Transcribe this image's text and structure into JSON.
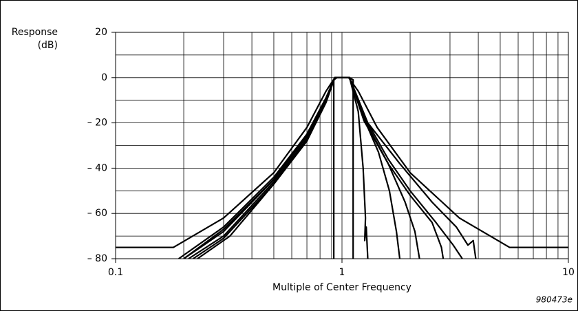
{
  "chart_data": {
    "type": "line",
    "ylabel_lines": [
      "Response",
      "(dB)"
    ],
    "xlabel": "Multiple of Center Frequency",
    "note": "980473e",
    "xscale": "log",
    "grid": true,
    "color": "#000000",
    "xlim": [
      0.1,
      10
    ],
    "xticks": [
      0.1,
      1,
      10
    ],
    "xminor_ticks": [
      0.2,
      0.3,
      0.4,
      0.5,
      0.6,
      0.7,
      0.8,
      0.9,
      2,
      3,
      4,
      5,
      6,
      7,
      8,
      9
    ],
    "ylim": [
      -80,
      20
    ],
    "yticks": [
      20,
      0,
      {
        "value": -20,
        "label": "– 20"
      },
      {
        "value": -40,
        "label": "– 40"
      },
      {
        "value": -60,
        "label": "– 60"
      },
      {
        "value": -80,
        "label": "– 80"
      }
    ],
    "yminor_ticks": [
      10,
      -10,
      -30,
      -50,
      -70
    ],
    "series": [
      {
        "color": "#000000",
        "x": [
          0.1,
          0.18,
          0.3,
          0.5,
          0.7,
          0.85,
          0.93,
          1.07,
          1.18,
          1.43,
          2,
          3.3,
          5.5,
          10
        ],
        "values": [
          -75,
          -75,
          -62,
          -42,
          -22,
          -6,
          0,
          0,
          -6,
          -22,
          -42,
          -62,
          -75,
          -75
        ]
      },
      {
        "color": "#000000",
        "x": [
          0.92,
          0.92,
          0.95,
          1.08,
          1.12,
          1.12
        ],
        "values": [
          -80,
          -1,
          0,
          0,
          -1,
          -80
        ]
      },
      {
        "color": "#000000",
        "x": [
          0.2,
          0.3,
          0.5,
          0.7,
          0.85,
          0.93,
          1.08,
          1.18,
          1.24,
          1.27,
          1.26,
          1.28,
          1.3
        ],
        "values": [
          -80,
          -68,
          -45,
          -26,
          -9,
          0,
          0,
          -15,
          -40,
          -62,
          -72,
          -66,
          -80
        ]
      },
      {
        "color": "#000000",
        "x": [
          0.21,
          0.3,
          0.5,
          0.7,
          0.85,
          0.93,
          1.08,
          1.25,
          1.45,
          1.62,
          1.74,
          1.8
        ],
        "values": [
          -80,
          -70,
          -46,
          -27,
          -10,
          0,
          0,
          -18,
          -33,
          -50,
          -68,
          -80
        ]
      },
      {
        "color": "#000000",
        "x": [
          0.22,
          0.3,
          0.5,
          0.7,
          0.85,
          0.93,
          1.08,
          1.25,
          1.6,
          1.9,
          2.1,
          2.2
        ],
        "values": [
          -80,
          -71,
          -47,
          -28,
          -10,
          0,
          0,
          -18,
          -38,
          -55,
          -68,
          -80
        ]
      },
      {
        "color": "#000000",
        "x": [
          0.23,
          0.32,
          0.5,
          0.7,
          0.85,
          0.93,
          1.08,
          1.25,
          1.6,
          2,
          2.5,
          2.75,
          2.8
        ],
        "values": [
          -80,
          -70,
          -47,
          -28,
          -11,
          0,
          0,
          -19,
          -38,
          -52,
          -64,
          -75,
          -80
        ]
      },
      {
        "color": "#000000",
        "x": [
          0.19,
          0.3,
          0.5,
          0.7,
          0.85,
          0.93,
          1.08,
          1.25,
          1.6,
          2,
          2.6,
          3.1,
          3.4
        ],
        "values": [
          -80,
          -66,
          -44,
          -25,
          -9,
          0,
          0,
          -17,
          -36,
          -50,
          -64,
          -74,
          -80
        ]
      },
      {
        "color": "#000000",
        "x": [
          0.2,
          0.3,
          0.5,
          0.7,
          0.85,
          0.93,
          1.08,
          1.3,
          1.8,
          2.5,
          3.2,
          3.6,
          3.8,
          3.9
        ],
        "values": [
          -80,
          -67,
          -45,
          -25,
          -9,
          0,
          0,
          -20,
          -38,
          -55,
          -66,
          -74,
          -72,
          -80
        ]
      }
    ]
  }
}
